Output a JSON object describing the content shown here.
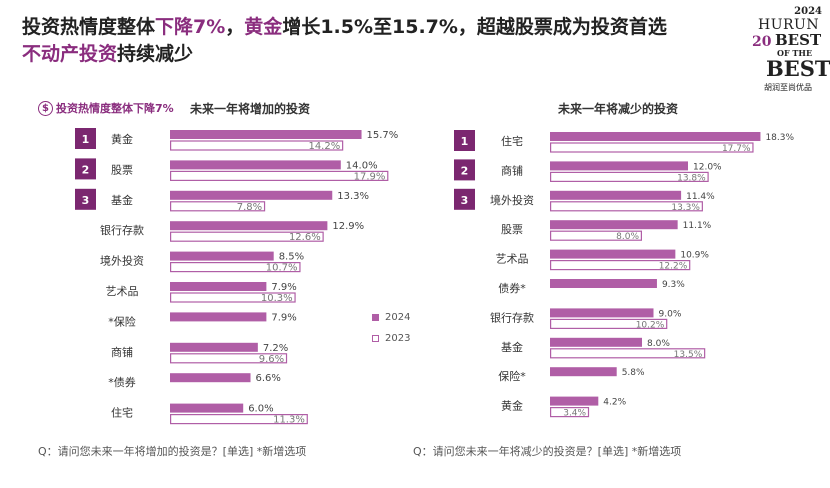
{
  "header": {
    "title_line1_a": "投资热情度整体",
    "title_line1_b": "下降7%",
    "title_line1_c": "，",
    "title_line1_d": "黄金",
    "title_line1_e": "增长1.5%至15.7%，超越股票成为投资首选",
    "title_line2_a": "不动产投资",
    "title_line2_b": "持续减少"
  },
  "logo": {
    "year": "2024",
    "hurun": "HURUN",
    "num": "20",
    "best1": "BEST",
    "ofthe": "OF THE",
    "best2": "BEST",
    "cn": "胡润至尚优品"
  },
  "callout": {
    "icon": "$",
    "text": "投资热情度整体下降7%"
  },
  "legend": {
    "label_2024": "2024",
    "label_2023": "2023"
  },
  "colors": {
    "bar_2024": "#b05ea6",
    "bar_2023_border": "#b05ea6",
    "badge": "#7b2770",
    "text": "#333333"
  },
  "chart_data": [
    {
      "type": "bar",
      "orientation": "horizontal",
      "title": "未来一年将增加的投资",
      "categories": [
        "黄金",
        "股票",
        "基金",
        "银行存款",
        "境外投资",
        "艺术品",
        "*保险",
        "商铺",
        "*债券",
        "住宅"
      ],
      "ranks": [
        "1",
        "2",
        "3"
      ],
      "series": [
        {
          "name": "2024",
          "values": [
            15.7,
            14.0,
            13.3,
            12.9,
            8.5,
            7.9,
            7.9,
            7.2,
            6.6,
            6.0
          ]
        },
        {
          "name": "2023",
          "values": [
            14.2,
            17.9,
            7.8,
            12.6,
            10.7,
            10.3,
            null,
            9.6,
            null,
            11.3
          ]
        }
      ],
      "labels_2024": [
        "15.7%",
        "14.0%",
        "13.3%",
        "12.9%",
        "8.5%",
        "7.9%",
        "7.9%",
        "7.2%",
        "6.6%",
        "6.0%"
      ],
      "labels_2023": [
        "14.2%",
        "17.9%",
        "7.8%",
        "12.6%",
        "10.7%",
        "10.3%",
        "",
        "9.6%",
        "",
        "11.3%"
      ],
      "footnote": "Q：请问您未来一年将增加的投资是？[单选]   *新增选项"
    },
    {
      "type": "bar",
      "orientation": "horizontal",
      "title": "未来一年将减少的投资",
      "categories": [
        "住宅",
        "商铺",
        "境外投资",
        "股票",
        "艺术品",
        "债券*",
        "银行存款",
        "基金",
        "保险*",
        "黄金"
      ],
      "ranks": [
        "1",
        "2",
        "3"
      ],
      "series": [
        {
          "name": "2024",
          "values": [
            18.3,
            12.0,
            11.4,
            11.1,
            10.9,
            9.3,
            9.0,
            8.0,
            5.8,
            4.2
          ]
        },
        {
          "name": "2023",
          "values": [
            17.7,
            13.8,
            13.3,
            8.0,
            12.2,
            null,
            10.2,
            13.5,
            null,
            3.4
          ]
        }
      ],
      "labels_2024": [
        "18.3%",
        "12.0%",
        "11.4%",
        "11.1%",
        "10.9%",
        "9.3%",
        "9.0%",
        "8.0%",
        "5.8%",
        "4.2%"
      ],
      "labels_2023": [
        "17.7%",
        "13.8%",
        "13.3%",
        "8.0%",
        "12.2%",
        "",
        "10.2%",
        "13.5%",
        "",
        "3.4%"
      ],
      "footnote": "Q：请问您未来一年将减少的投资是？[单选]   *新增选项"
    }
  ]
}
